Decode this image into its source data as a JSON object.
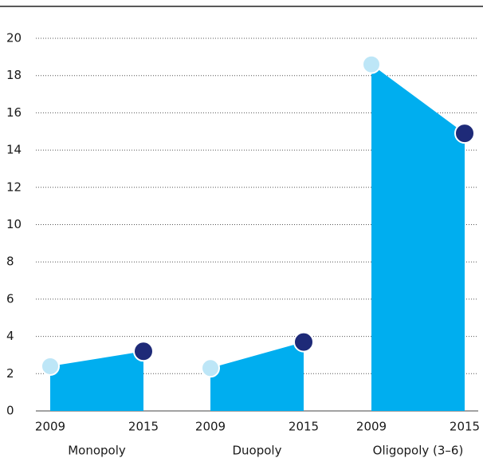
{
  "chart_data": {
    "type": "slope-area",
    "categories": [
      "Monopoly",
      "Duopoly",
      "Oligopoly (3–6)"
    ],
    "x": [
      "2009",
      "2015"
    ],
    "values": [
      [
        2.4,
        3.2
      ],
      [
        2.3,
        3.7
      ],
      [
        18.6,
        14.9
      ]
    ],
    "color": "#00aeef",
    "start_color": "#bde6f7",
    "end_color": "#1e2a78",
    "ylim": [
      0,
      20
    ],
    "yticks": [
      0,
      2,
      4,
      6,
      8,
      10,
      12,
      14,
      16,
      18,
      20
    ],
    "grid": true
  }
}
